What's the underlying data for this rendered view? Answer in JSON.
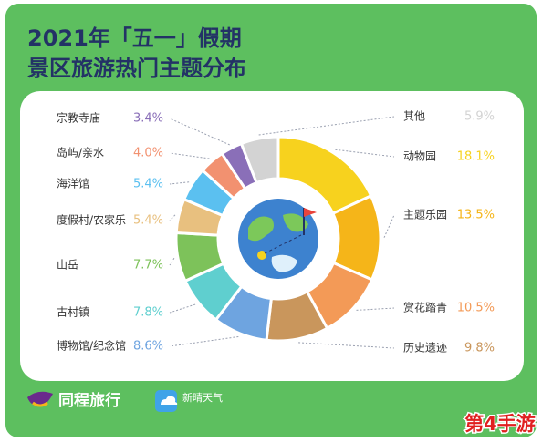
{
  "chart_data": {
    "type": "pie",
    "title": [
      "2021年「五一」假期",
      "景区旅游热门主题分布"
    ],
    "categories": [
      "动物园",
      "主题乐园",
      "赏花踏青",
      "历史遗迹",
      "博物馆/纪念馆",
      "古村镇",
      "山岳",
      "度假村/农家乐",
      "海洋馆",
      "岛屿/亲水",
      "宗教寺庙",
      "其他"
    ],
    "values": [
      18.1,
      13.5,
      10.5,
      9.8,
      8.6,
      7.8,
      7.7,
      5.4,
      5.4,
      4.0,
      3.4,
      5.9
    ],
    "value_labels": [
      "18.1%",
      "13.5%",
      "10.5%",
      "9.8%",
      "8.6%",
      "7.8%",
      "7.7%",
      "5.4%",
      "5.4%",
      "4.0%",
      "3.4%",
      "5.9%"
    ],
    "colors": [
      "#f7d21e",
      "#f5b519",
      "#f39a57",
      "#c9965c",
      "#6ea4e0",
      "#5fcfcf",
      "#7dc25a",
      "#e8c07f",
      "#5bc0f0",
      "#f29170",
      "#8a6fb8",
      "#d3d3d3"
    ]
  },
  "brand": "同程旅行",
  "partner": "新晴天气",
  "watermark": "第4手游"
}
